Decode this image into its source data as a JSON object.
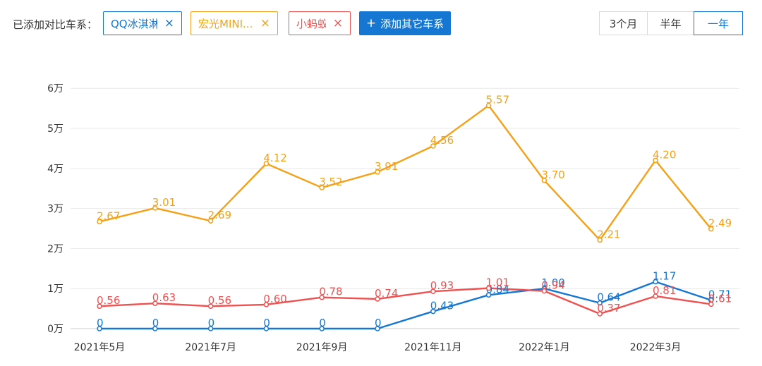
{
  "toolbar": {
    "prefix": "已添加对比车系：",
    "chips": [
      {
        "label": "QQ冰淇淋",
        "color": "#1677d2"
      },
      {
        "label": "宏光MINI...",
        "color": "#f5a117"
      },
      {
        "label": "小蚂蚁",
        "color": "#ef5050"
      }
    ],
    "close_symbol": "×",
    "add_label": "添加其它车系",
    "add_symbol": "+",
    "ranges": [
      {
        "label": "3个月",
        "active": false
      },
      {
        "label": "半年",
        "active": false
      },
      {
        "label": "一年",
        "active": true
      }
    ]
  },
  "chart_data": {
    "type": "line",
    "unit_note": "y values in 万 (10,000 units)",
    "x": [
      "2021年5月",
      "2021年6月",
      "2021年7月",
      "2021年8月",
      "2021年9月",
      "2021年10月",
      "2021年11月",
      "2021年12月",
      "2022年1月",
      "2022年2月",
      "2022年3月",
      "2022年4月"
    ],
    "xtick_labels": [
      "2021年5月",
      "",
      "2021年7月",
      "",
      "2021年9月",
      "",
      "2021年11月",
      "",
      "2022年1月",
      "",
      "2022年3月",
      ""
    ],
    "ytick_labels": [
      "0万",
      "1万",
      "2万",
      "3万",
      "4万",
      "5万",
      "6万"
    ],
    "ylim": [
      0,
      6
    ],
    "grid": true,
    "series": [
      {
        "name": "QQ冰淇淋",
        "color": "#1677d2",
        "values": [
          0,
          0,
          0,
          0,
          0,
          0,
          0.43,
          0.84,
          1.0,
          0.64,
          1.17,
          0.71
        ],
        "labels": [
          "0",
          "0",
          "0",
          "0",
          "0",
          "0",
          "0.43",
          "0.84",
          "1.00",
          "0.64",
          "1.17",
          "0.71"
        ]
      },
      {
        "name": "宏光MINI...",
        "color": "#f5a117",
        "values": [
          2.67,
          3.01,
          2.69,
          4.12,
          3.52,
          3.91,
          4.56,
          5.57,
          3.7,
          2.21,
          4.2,
          2.49
        ],
        "labels": [
          "2.67",
          "3.01",
          "2.69",
          "4.12",
          "3.52",
          "3.91",
          "4.56",
          "5.57",
          "3.70",
          "2.21",
          "4.20",
          "2.49"
        ]
      },
      {
        "name": "小蚂蚁",
        "color": "#ef5050",
        "values": [
          0.56,
          0.63,
          0.56,
          0.6,
          0.78,
          0.74,
          0.93,
          1.01,
          0.94,
          0.37,
          0.81,
          0.61
        ],
        "labels": [
          "0.56",
          "0.63",
          "0.56",
          "0.60",
          "0.78",
          "0.74",
          "0.93",
          "1.01",
          "0.94",
          "0.37",
          "0.81",
          "0.61"
        ]
      }
    ]
  }
}
